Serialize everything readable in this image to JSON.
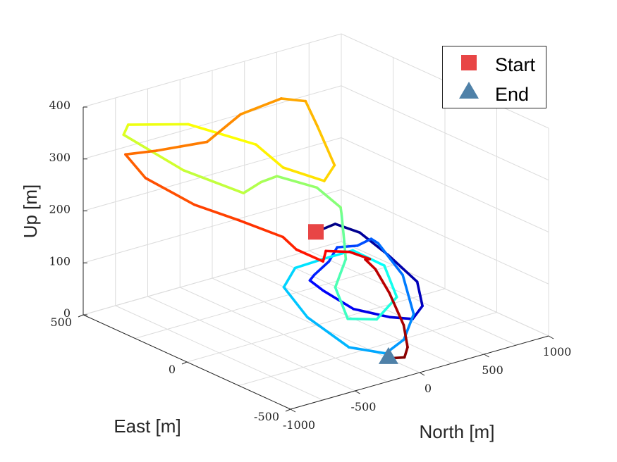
{
  "chart_data": {
    "type": "line3d",
    "xlabel": "North [m]",
    "ylabel": "East [m]",
    "zlabel": "Up [m]",
    "xlim": [
      -1000,
      1000
    ],
    "ylim": [
      -500,
      500
    ],
    "zlim": [
      0,
      400
    ],
    "x_ticks": [
      "-1000",
      "-500",
      "0",
      "500",
      "1000"
    ],
    "y_ticks": [
      "-500",
      "0",
      "500"
    ],
    "z_ticks": [
      "0",
      "100",
      "200",
      "300",
      "400"
    ],
    "grid": true,
    "colormap": "jet",
    "legend": {
      "position": "top-right",
      "entries": [
        {
          "label": "Start",
          "marker": "square",
          "color": "#e84545"
        },
        {
          "label": "End",
          "marker": "triangle",
          "color": "#4f81a8"
        }
      ]
    },
    "markers": {
      "start": {
        "x": 0,
        "y": 0,
        "z": 180
      },
      "end": {
        "x": 0,
        "y": -350,
        "z": 0
      }
    },
    "trajectory": {
      "color_by": "time",
      "points": [
        [
          0,
          0,
          180
        ],
        [
          230,
          50,
          170
        ],
        [
          420,
          50,
          140
        ],
        [
          540,
          -10,
          100
        ],
        [
          560,
          -140,
          70
        ],
        [
          440,
          -240,
          50
        ],
        [
          300,
          -280,
          42
        ],
        [
          140,
          -270,
          55
        ],
        [
          -30,
          -200,
          70
        ],
        [
          -200,
          -160,
          110
        ],
        [
          -320,
          -170,
          140
        ],
        [
          -350,
          -210,
          160
        ],
        [
          -220,
          -200,
          175
        ],
        [
          -60,
          -140,
          180
        ],
        [
          80,
          -150,
          175
        ],
        [
          300,
          -80,
          160
        ],
        [
          450,
          -20,
          130
        ],
        [
          480,
          -120,
          85
        ],
        [
          340,
          -260,
          45
        ],
        [
          120,
          -350,
          28
        ],
        [
          -70,
          -380,
          20
        ],
        [
          -290,
          -340,
          40
        ],
        [
          -500,
          -270,
          100
        ],
        [
          -570,
          -200,
          150
        ],
        [
          -450,
          -180,
          175
        ],
        [
          -240,
          -190,
          180
        ],
        [
          -100,
          -240,
          195
        ],
        [
          0,
          -330,
          175
        ],
        [
          -80,
          -440,
          140
        ],
        [
          -300,
          -480,
          120
        ],
        [
          -460,
          -440,
          125
        ],
        [
          -380,
          -330,
          160
        ],
        [
          -170,
          -250,
          185
        ],
        [
          -40,
          -160,
          200
        ],
        [
          150,
          -30,
          210
        ],
        [
          320,
          80,
          190
        ],
        [
          360,
          220,
          200
        ],
        [
          180,
          300,
          220
        ],
        [
          -40,
          240,
          235
        ],
        [
          -320,
          150,
          250
        ],
        [
          -640,
          240,
          300
        ],
        [
          -880,
          380,
          360
        ],
        [
          -780,
          420,
          365
        ],
        [
          -380,
          380,
          345
        ],
        [
          -160,
          190,
          325
        ],
        [
          -190,
          40,
          310
        ],
        [
          -80,
          -90,
          300
        ],
        [
          80,
          -40,
          310
        ],
        [
          300,
          180,
          330
        ],
        [
          450,
          330,
          340
        ],
        [
          470,
          460,
          320
        ],
        [
          220,
          500,
          300
        ],
        [
          -120,
          450,
          280
        ],
        [
          -400,
          520,
          270
        ],
        [
          -560,
          570,
          265
        ],
        [
          -630,
          430,
          250
        ],
        [
          -540,
          250,
          225
        ],
        [
          -410,
          120,
          210
        ],
        [
          -320,
          -40,
          200
        ],
        [
          -360,
          -130,
          195
        ],
        [
          -330,
          -240,
          190
        ],
        [
          -180,
          -160,
          185
        ],
        [
          -60,
          -200,
          182
        ],
        [
          0,
          -260,
          175
        ],
        [
          110,
          -170,
          150
        ],
        [
          220,
          -150,
          120
        ],
        [
          200,
          -230,
          90
        ],
        [
          150,
          -330,
          50
        ],
        [
          100,
          -380,
          20
        ],
        [
          60,
          -390,
          5
        ],
        [
          0,
          -350,
          0
        ]
      ]
    }
  }
}
